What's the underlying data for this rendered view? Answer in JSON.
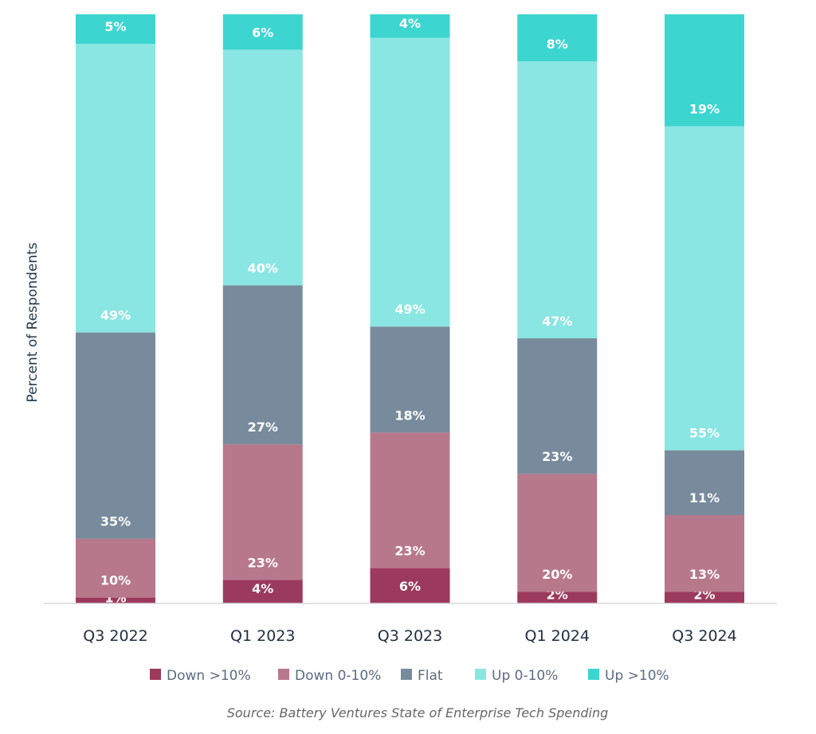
{
  "chart_data": {
    "type": "bar",
    "stacked": true,
    "title": "",
    "xlabel": "",
    "ylabel": "Percent of Respondents",
    "ylim": [
      0,
      100
    ],
    "grid": false,
    "legend_position": "bottom",
    "categories": [
      "Q3 2022",
      "Q1 2023",
      "Q3 2023",
      "Q1 2024",
      "Q3 2024"
    ],
    "series": [
      {
        "name": "Down >10%",
        "color": "#9b3a5c",
        "values": [
          1,
          4,
          6,
          2,
          2
        ]
      },
      {
        "name": "Down 0-10%",
        "color": "#b7788c",
        "values": [
          10,
          23,
          23,
          20,
          13
        ]
      },
      {
        "name": "Flat",
        "color": "#788b9c",
        "values": [
          35,
          27,
          18,
          23,
          11
        ]
      },
      {
        "name": "Up 0-10%",
        "color": "#8ae6e2",
        "values": [
          49,
          40,
          49,
          47,
          55
        ]
      },
      {
        "name": "Up >10%",
        "color": "#3dd5d0",
        "values": [
          5,
          6,
          4,
          8,
          19
        ]
      }
    ],
    "value_suffix": "%",
    "source": "Source: Battery Ventures State of Enterprise Tech Spending"
  }
}
